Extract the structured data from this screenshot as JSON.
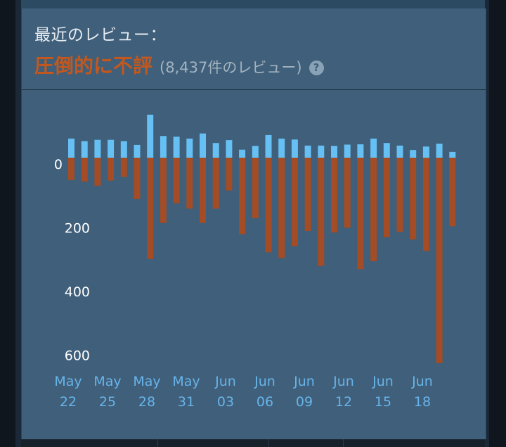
{
  "review_box": {
    "heading": "最近のレビュー：",
    "summary": "圧倒的に不評",
    "count_text": "(8,437件のレビュー)",
    "help_icon": "help-question-icon"
  },
  "colors": {
    "positive": "#66c0f4",
    "negative": "#a34c25",
    "summary": "#c3581f",
    "tick_date": "#67b4ea"
  },
  "chart_data": {
    "type": "bar",
    "title": "",
    "xlabel": "",
    "ylabel": "",
    "categories": [
      "May 22",
      "May 23",
      "May 24",
      "May 25",
      "May 26",
      "May 27",
      "May 28",
      "May 29",
      "May 30",
      "May 31",
      "Jun 01",
      "Jun 02",
      "Jun 03",
      "Jun 04",
      "Jun 05",
      "Jun 06",
      "Jun 07",
      "Jun 08",
      "Jun 09",
      "Jun 10",
      "Jun 11",
      "Jun 12",
      "Jun 13",
      "Jun 14",
      "Jun 15",
      "Jun 16",
      "Jun 17",
      "Jun 18",
      "Jun 19",
      "Jun 20"
    ],
    "series": [
      {
        "values": [
          60,
          52,
          56,
          56,
          52,
          40,
          135,
          68,
          66,
          60,
          76,
          46,
          55,
          25,
          37,
          71,
          60,
          57,
          38,
          38,
          37,
          41,
          42,
          60,
          46,
          38,
          24,
          35,
          44,
          18
        ]
      },
      {
        "values": [
          -70,
          -75,
          -88,
          -72,
          -60,
          -130,
          -318,
          -205,
          -143,
          -160,
          -205,
          -160,
          -103,
          -240,
          -190,
          -297,
          -315,
          -278,
          -230,
          -340,
          -235,
          -220,
          -350,
          -325,
          -250,
          -233,
          -257,
          -293,
          -645,
          -215
        ]
      }
    ],
    "y_ticks": [
      "0",
      "200",
      "400",
      "600"
    ],
    "x_ticks": [
      {
        "month": "May",
        "day": "22"
      },
      {
        "month": "May",
        "day": "25"
      },
      {
        "month": "May",
        "day": "28"
      },
      {
        "month": "May",
        "day": "31"
      },
      {
        "month": "Jun",
        "day": "03"
      },
      {
        "month": "Jun",
        "day": "06"
      },
      {
        "month": "Jun",
        "day": "09"
      },
      {
        "month": "Jun",
        "day": "12"
      },
      {
        "month": "Jun",
        "day": "15"
      },
      {
        "month": "Jun",
        "day": "18"
      }
    ],
    "ylim": [
      -650,
      140
    ],
    "grid": false,
    "legend": "none"
  }
}
